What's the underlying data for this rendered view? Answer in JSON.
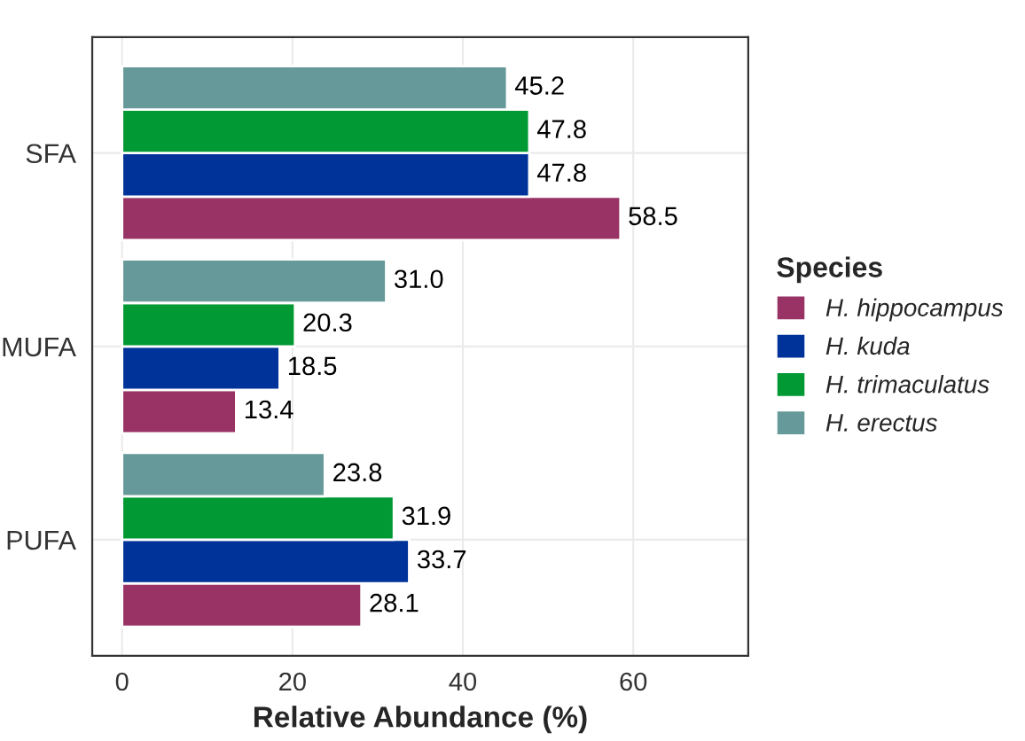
{
  "chart_data": {
    "type": "bar",
    "orientation": "horizontal",
    "categories": [
      "SFA",
      "MUFA",
      "PUFA"
    ],
    "series": [
      {
        "name": "H. hippocampus",
        "color": "#993366",
        "values": [
          58.5,
          13.4,
          28.1
        ],
        "value_labels": [
          "58.5",
          "13.4",
          "28.1"
        ]
      },
      {
        "name": "H. kuda",
        "color": "#003399",
        "values": [
          47.8,
          18.5,
          33.7
        ],
        "value_labels": [
          "47.8",
          "18.5",
          "33.7"
        ]
      },
      {
        "name": "H. trimaculatus",
        "color": "#009933",
        "values": [
          47.8,
          20.3,
          31.9
        ],
        "value_labels": [
          "47.8",
          "20.3",
          "31.9"
        ]
      },
      {
        "name": "H. erectus",
        "color": "#669999",
        "values": [
          45.2,
          31.0,
          23.8
        ],
        "value_labels": [
          "45.2",
          "31.0",
          "23.8"
        ]
      }
    ],
    "xlabel": "Relative Abundance (%)",
    "legend_title": "Species",
    "legend": "right",
    "xlim": [
      -3.5,
      73.5
    ],
    "xticks": [
      0,
      20,
      40,
      60
    ],
    "grid": true
  }
}
